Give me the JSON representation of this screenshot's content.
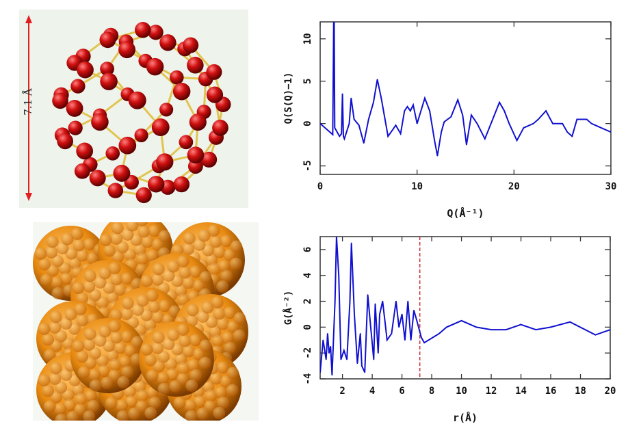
{
  "figure": {
    "molecule_size_label": "7.1 Å",
    "colors": {
      "atom": "#d01010",
      "bond": "#e0c040",
      "crystal": "#e88a10",
      "curve": "#1010d0",
      "cutoff_line": "#d03030"
    }
  },
  "chart_data": [
    {
      "type": "line",
      "xlabel": "Q(Å⁻¹)",
      "ylabel": "Q(S(Q)−1)",
      "xlim": [
        0,
        30
      ],
      "ylim": [
        -6,
        12
      ],
      "xticks": [
        0,
        10,
        20,
        30
      ],
      "yticks": [
        -5,
        0,
        5,
        10
      ],
      "grid": false,
      "x": [
        0,
        1.3,
        1.4,
        1.45,
        1.5,
        2,
        2.2,
        2.3,
        2.4,
        2.5,
        3,
        3.2,
        3.5,
        4,
        4.5,
        5,
        5.5,
        5.9,
        6.3,
        7,
        7.5,
        7.8,
        8.3,
        8.7,
        9,
        9.3,
        9.6,
        10,
        10.8,
        11.3,
        11.8,
        12.1,
        12.5,
        12.8,
        13.5,
        14.2,
        14.7,
        15.1,
        15.6,
        16.2,
        17,
        17.8,
        18.5,
        19,
        19.5,
        20.3,
        21,
        22,
        22.5,
        23.3,
        24,
        25,
        25.5,
        26,
        26.5,
        27.5,
        28,
        29,
        30
      ],
      "y": [
        0,
        -1.3,
        12,
        12,
        -0.5,
        -1.5,
        -1.2,
        3.5,
        -1.5,
        -1.8,
        0,
        3,
        0.5,
        -0.2,
        -2.3,
        0.5,
        2.5,
        5.2,
        3,
        -1.5,
        -0.7,
        -0.2,
        -1.2,
        1.5,
        2,
        1.5,
        2.2,
        0,
        3,
        1.5,
        -2,
        -3.8,
        -1,
        0.2,
        0.8,
        2.8,
        1,
        -2.5,
        1,
        0,
        -1.8,
        0.5,
        2.5,
        1.5,
        0,
        -2,
        -0.5,
        0,
        0.5,
        1.5,
        0,
        0,
        -1,
        -1.5,
        0.5,
        0.5,
        0,
        -0.5,
        -1
      ]
    },
    {
      "type": "line",
      "xlabel": "r(Å)",
      "ylabel": "G(Å⁻²)",
      "xlim": [
        0.5,
        20
      ],
      "ylim": [
        -4,
        7
      ],
      "xticks": [
        2,
        4,
        6,
        8,
        10,
        12,
        14,
        16,
        18,
        20
      ],
      "yticks": [
        -4,
        -2,
        0,
        2,
        4,
        6
      ],
      "grid": false,
      "cutoff_r": 7.2,
      "x": [
        0.5,
        0.7,
        0.9,
        1.0,
        1.1,
        1.2,
        1.3,
        1.5,
        1.6,
        1.75,
        1.9,
        2.1,
        2.3,
        2.5,
        2.6,
        2.8,
        3.0,
        3.2,
        3.3,
        3.5,
        3.7,
        3.9,
        4.1,
        4.2,
        4.4,
        4.5,
        4.7,
        4.9,
        5.0,
        5.3,
        5.6,
        5.8,
        6.0,
        6.2,
        6.4,
        6.6,
        6.8,
        7.0,
        7.3,
        7.5,
        8.5,
        9,
        10,
        11,
        12,
        13,
        14,
        15,
        16,
        17.3,
        19,
        20
      ],
      "y": [
        -3.5,
        -1,
        -2.5,
        -0.5,
        -2,
        -1.5,
        -3.7,
        2,
        7,
        4,
        -2.5,
        -1.8,
        -2.5,
        2,
        6.5,
        1,
        -2.8,
        -0.5,
        -3,
        -3.5,
        2.5,
        0,
        -2.5,
        1.8,
        -2,
        1,
        2,
        0,
        -1,
        -0.5,
        2,
        0,
        1,
        -1,
        2,
        -1,
        1.3,
        0.5,
        -0.8,
        -1.2,
        -0.5,
        0,
        0.5,
        0,
        -0.2,
        -0.2,
        0.2,
        -0.2,
        0,
        0.4,
        -0.6,
        -0.2
      ]
    }
  ]
}
